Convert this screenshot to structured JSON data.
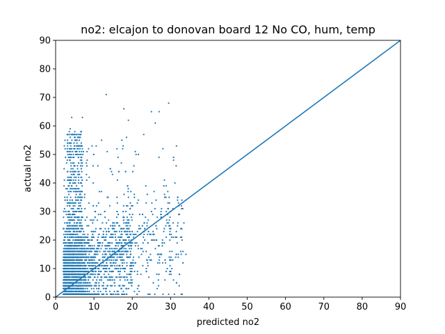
{
  "chart_data": {
    "type": "scatter",
    "title": "no2: elcajon to donovan board 12 No CO, hum, temp",
    "xlabel": "predicted no2",
    "ylabel": "actual no2",
    "xlim": [
      0,
      90
    ],
    "ylim": [
      0,
      90
    ],
    "xticks": [
      0,
      10,
      20,
      30,
      40,
      50,
      60,
      70,
      80,
      90
    ],
    "yticks": [
      0,
      10,
      20,
      30,
      40,
      50,
      60,
      70,
      80,
      90
    ],
    "grid": false,
    "legend": "none",
    "marker_color": "#1f77b4",
    "reference_line": {
      "x": [
        0,
        90
      ],
      "y": [
        0,
        90
      ],
      "color": "#1f77b4"
    },
    "point_cloud": {
      "description_ranges": {
        "x_range": [
          1.5,
          34
        ],
        "y_range": [
          0,
          71
        ],
        "dense_core_x": [
          2,
          10
        ],
        "dense_core_y": [
          1,
          28
        ]
      }
    },
    "outliers": [
      {
        "x": 13.2,
        "y": 71
      },
      {
        "x": 17.8,
        "y": 66
      },
      {
        "x": 7.0,
        "y": 63
      },
      {
        "x": 4.2,
        "y": 63
      },
      {
        "x": 25.0,
        "y": 65
      },
      {
        "x": 27.0,
        "y": 65
      },
      {
        "x": 29.5,
        "y": 68
      },
      {
        "x": 26.0,
        "y": 61
      },
      {
        "x": 19.0,
        "y": 62
      },
      {
        "x": 3.8,
        "y": 59
      },
      {
        "x": 5.0,
        "y": 58
      },
      {
        "x": 23.0,
        "y": 57
      },
      {
        "x": 18.5,
        "y": 56
      },
      {
        "x": 12.0,
        "y": 55
      },
      {
        "x": 16.0,
        "y": 52
      },
      {
        "x": 21.0,
        "y": 50
      },
      {
        "x": 28.0,
        "y": 52
      },
      {
        "x": 33.0,
        "y": 20
      },
      {
        "x": 34.0,
        "y": 15
      },
      {
        "x": 31.0,
        "y": 1
      },
      {
        "x": 29.5,
        "y": 1
      },
      {
        "x": 26.5,
        "y": 3
      }
    ]
  }
}
